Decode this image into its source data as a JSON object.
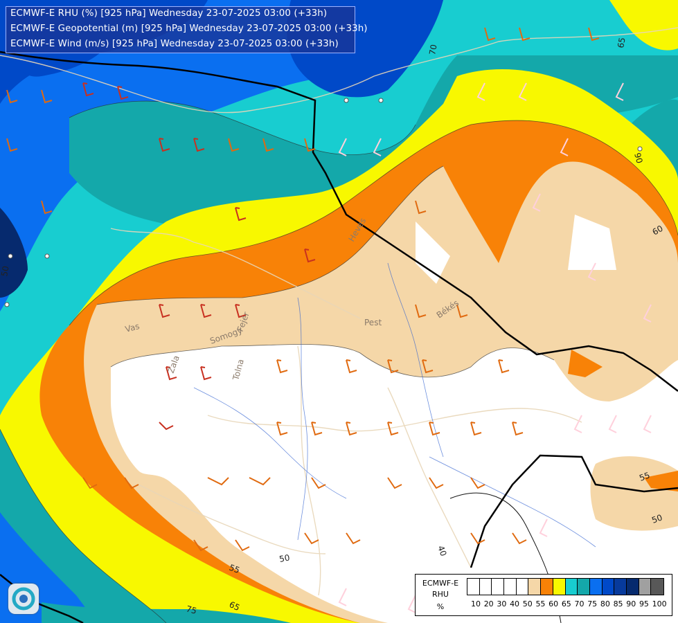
{
  "titles": {
    "line1": "ECMWF-E RHU (%) [925 hPa] Wednesday 23-07-2025 03:00 (+33h)",
    "line2": "ECMWF-E Geopotential (m) [925 hPa] Wednesday 23-07-2025 03:00 (+33h)",
    "line3": "ECMWF-E Wind (m/s) [925 hPa] Wednesday 23-07-2025 03:00 (+33h)"
  },
  "legend": {
    "line1": "ECMWF-E",
    "line2": "RHU",
    "line3": "%",
    "colors": [
      "#ffffff",
      "#ffffff",
      "#ffffff",
      "#ffffff",
      "#ffffff",
      "#f5d7a8",
      "#f88207",
      "#f8f800",
      "#18cdd0",
      "#14a8aa",
      "#0a6ff0",
      "#0049c8",
      "#073a9c",
      "#062a6e",
      "#a0a0a0",
      "#585858"
    ],
    "ticks": [
      "10",
      "20",
      "30",
      "40",
      "50",
      "55",
      "60",
      "65",
      "70",
      "75",
      "80",
      "85",
      "90",
      "95",
      "100"
    ]
  },
  "map_labels": {
    "regions": [
      "Vas",
      "Pest",
      "Békés",
      "Zala",
      "Somogy",
      "Fejér",
      "Tolna",
      "Heves"
    ],
    "contours": [
      "70",
      "65",
      "60",
      "55",
      "50",
      "40",
      "75",
      "90",
      "55",
      "50",
      "65",
      "50"
    ]
  }
}
